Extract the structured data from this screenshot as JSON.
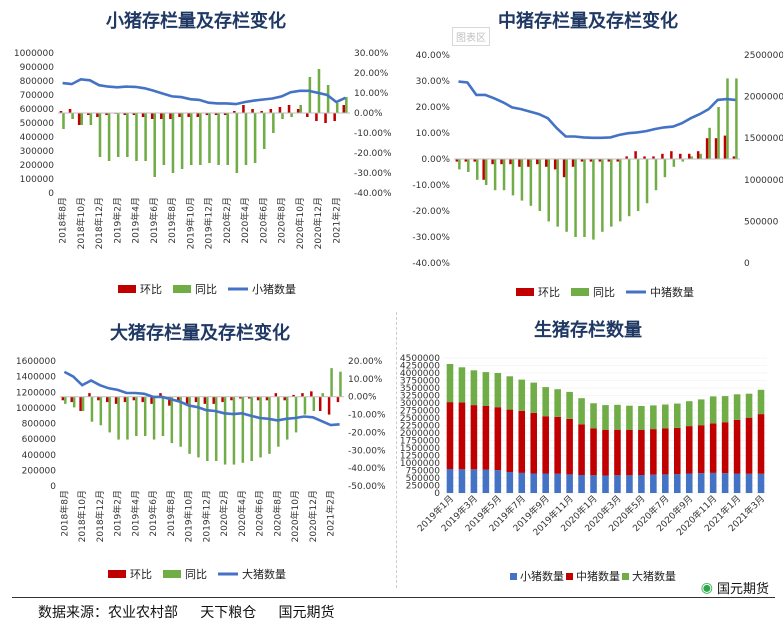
{
  "colors": {
    "mom": "#c00000",
    "yoy": "#70ad47",
    "line": "#4472c4",
    "stack_small": "#4472c4",
    "stack_mid": "#c00000",
    "stack_big": "#70ad47"
  },
  "legend_labels": {
    "mom": "环比",
    "yoy": "同比"
  },
  "footer": {
    "source": "数据来源：农业农村部     天下粮仓     国元期货",
    "brand": "国元期货",
    "brand_icon": "wechat-icon"
  },
  "watermark": "图表区",
  "chart_data": [
    {
      "type": "bar",
      "title": "小猪存栏量及存栏变化",
      "categories": [
        "2018年8月",
        "2018年9月",
        "2018年10月",
        "2018年11月",
        "2018年12月",
        "2019年1月",
        "2019年2月",
        "2019年3月",
        "2019年4月",
        "2019年5月",
        "2019年6月",
        "2019年7月",
        "2019年8月",
        "2019年9月",
        "2019年10月",
        "2019年11月",
        "2019年12月",
        "2020年1月",
        "2020年2月",
        "2020年3月",
        "2020年4月",
        "2020年5月",
        "2020年6月",
        "2020年7月",
        "2020年8月",
        "2020年9月",
        "2020年10月",
        "2020年11月",
        "2020年12月",
        "2021年1月",
        "2021年2月",
        "2021年3月"
      ],
      "xtick_labels": [
        "2018年8月",
        "2018年10月",
        "2018年12月",
        "2019年2月",
        "2019年4月",
        "2019年6月",
        "2019年8月",
        "2019年10月",
        "2019年12月",
        "2020年2月",
        "2020年4月",
        "2020年6月",
        "2020年8月",
        "2020年10月",
        "2020年12月",
        "2021年2月"
      ],
      "left_axis": {
        "ylim": [
          0,
          1000000
        ],
        "ticks": [
          "0",
          "100000",
          "200000",
          "300000",
          "400000",
          "500000",
          "600000",
          "700000",
          "800000",
          "900000",
          "1000000"
        ]
      },
      "right_axis": {
        "ylim": [
          -40,
          30
        ],
        "ticks": [
          "-40.00%",
          "-30.00%",
          "-20.00%",
          "-10.00%",
          "0.00%",
          "10.00%",
          "20.00%",
          "30.00%"
        ]
      },
      "series": [
        {
          "name": "环比",
          "kind": "bar",
          "axis": "right",
          "values": [
            1,
            2,
            -6,
            -1,
            -2,
            -1,
            0,
            -1,
            -1,
            -2,
            -3,
            -3,
            -3,
            -2,
            -2,
            -2,
            -1,
            -1,
            -1,
            1,
            4,
            2,
            1,
            2,
            3,
            4,
            2,
            -2,
            -4,
            -5,
            -4,
            4
          ]
        },
        {
          "name": "同比",
          "kind": "bar",
          "axis": "right",
          "values": [
            -8,
            -3,
            -6,
            -6,
            -22,
            -24,
            -22,
            -22,
            -24,
            -24,
            -32,
            -26,
            -30,
            -28,
            -26,
            -26,
            -25,
            -26,
            -26,
            -30,
            -26,
            -25,
            -18,
            -10,
            -3,
            -2,
            4,
            18,
            22,
            14,
            5,
            8
          ]
        },
        {
          "name": "小猪数量",
          "kind": "line",
          "axis": "left",
          "values": [
            785000,
            778000,
            812000,
            805000,
            770000,
            760000,
            755000,
            760000,
            758000,
            748000,
            730000,
            710000,
            690000,
            685000,
            670000,
            665000,
            645000,
            640000,
            640000,
            635000,
            650000,
            660000,
            668000,
            675000,
            690000,
            720000,
            730000,
            730000,
            715000,
            700000,
            650000,
            680000
          ]
        }
      ]
    },
    {
      "type": "bar",
      "title": "中猪存栏量及存栏变化",
      "categories": [
        "2018年8月",
        "2018年9月",
        "2018年10月",
        "2018年11月",
        "2018年12月",
        "2019年1月",
        "2019年2月",
        "2019年3月",
        "2019年4月",
        "2019年5月",
        "2019年6月",
        "2019年7月",
        "2019年8月",
        "2019年9月",
        "2019年10月",
        "2019年11月",
        "2019年12月",
        "2020年1月",
        "2020年2月",
        "2020年3月",
        "2020年4月",
        "2020年5月",
        "2020年6月",
        "2020年7月",
        "2020年8月",
        "2020年9月",
        "2020年10月",
        "2020年11月",
        "2020年12月",
        "2021年1月",
        "2021年2月",
        "2021年3月"
      ],
      "left_axis": {
        "ylim": [
          -40,
          40
        ],
        "ticks": [
          "-40.00%",
          "-30.00%",
          "-20.00%",
          "-10.00%",
          "0.00%",
          "10.00%",
          "20.00%",
          "30.00%",
          "40.00%"
        ]
      },
      "right_axis": {
        "ylim": [
          0,
          2500000
        ],
        "ticks": [
          "0",
          "500000",
          "1000000",
          "1500000",
          "2000000",
          "2500000"
        ]
      },
      "series": [
        {
          "name": "环比",
          "kind": "bar",
          "axis": "left",
          "values": [
            -1,
            -1,
            -1,
            -8,
            -2,
            -2,
            -2,
            -3,
            -3,
            -2,
            -3,
            -4,
            -7,
            -3,
            -1,
            -1,
            -1,
            -1,
            -1,
            1,
            3,
            1,
            1,
            2,
            3,
            2,
            2,
            3,
            8,
            8,
            9,
            1
          ]
        },
        {
          "name": "同比",
          "kind": "bar",
          "axis": "left",
          "values": [
            -4,
            -5,
            -8,
            -10,
            -12,
            -12,
            -14,
            -16,
            -18,
            -20,
            -24,
            -26,
            -28,
            -30,
            -30,
            -31,
            -28,
            -26,
            -24,
            -22,
            -20,
            -17,
            -12,
            -7,
            -3,
            -1,
            1,
            2,
            12,
            20,
            31,
            31
          ]
        },
        {
          "name": "中猪数量",
          "kind": "line",
          "axis": "right",
          "values": [
            2180000,
            2170000,
            2020000,
            2020000,
            1980000,
            1930000,
            1870000,
            1850000,
            1820000,
            1790000,
            1740000,
            1620000,
            1520000,
            1520000,
            1510000,
            1505000,
            1505000,
            1510000,
            1540000,
            1560000,
            1570000,
            1585000,
            1610000,
            1630000,
            1640000,
            1680000,
            1740000,
            1790000,
            1850000,
            1960000,
            1970000,
            1960000
          ]
        }
      ]
    },
    {
      "type": "bar",
      "title": "大猪存栏量及存栏变化",
      "categories": [
        "2018年8月",
        "2018年9月",
        "2018年10月",
        "2018年11月",
        "2018年12月",
        "2019年1月",
        "2019年2月",
        "2019年3月",
        "2019年4月",
        "2019年5月",
        "2019年6月",
        "2019年7月",
        "2019年8月",
        "2019年9月",
        "2019年10月",
        "2019年11月",
        "2019年12月",
        "2020年1月",
        "2020年2月",
        "2020年3月",
        "2020年4月",
        "2020年5月",
        "2020年6月",
        "2020年7月",
        "2020年8月",
        "2020年9月",
        "2020年10月",
        "2020年11月",
        "2020年12月",
        "2021年1月",
        "2021年2月",
        "2021年3月"
      ],
      "xtick_labels": [
        "2018年8月",
        "2018年10月",
        "2018年12月",
        "2019年2月",
        "2019年4月",
        "2019年6月",
        "2019年8月",
        "2019年10月",
        "2019年12月",
        "2020年2月",
        "2020年4月",
        "2020年6月",
        "2020年8月",
        "2020年10月",
        "2020年12月",
        "2021年2月"
      ],
      "left_axis": {
        "ylim": [
          0,
          1600000
        ],
        "ticks": [
          "0",
          "200000",
          "400000",
          "600000",
          "800000",
          "1000000",
          "1200000",
          "1400000",
          "1600000"
        ]
      },
      "right_axis": {
        "ylim": [
          -50,
          20
        ],
        "ticks": [
          "-50.00%",
          "-40.00%",
          "-30.00%",
          "-20.00%",
          "-10.00%",
          "0.00%",
          "10.00%",
          "20.00%"
        ]
      },
      "series": [
        {
          "name": "环比",
          "kind": "bar",
          "axis": "right",
          "values": [
            -2,
            -3,
            -8,
            2,
            -2,
            -3,
            -4,
            -3,
            -2,
            -3,
            -4,
            2,
            -5,
            -3,
            -4,
            -3,
            -4,
            -4,
            -3,
            -2,
            -1,
            -1,
            -2,
            -2,
            2,
            -2,
            1,
            2,
            3,
            -8,
            -10,
            -3
          ]
        },
        {
          "name": "同比",
          "kind": "bar",
          "axis": "right",
          "values": [
            -4,
            -6,
            -8,
            -14,
            -16,
            -20,
            -24,
            -24,
            -22,
            -22,
            -24,
            -22,
            -26,
            -28,
            -32,
            -34,
            -36,
            -36,
            -38,
            -38,
            -37,
            -36,
            -34,
            -32,
            -28,
            -24,
            -20,
            -10,
            -8,
            2,
            16,
            14
          ]
        },
        {
          "name": "大猪数量",
          "kind": "line",
          "axis": "left",
          "values": [
            1460000,
            1400000,
            1290000,
            1350000,
            1290000,
            1250000,
            1230000,
            1190000,
            1190000,
            1180000,
            1140000,
            1140000,
            1110000,
            1080000,
            1030000,
            1010000,
            970000,
            960000,
            930000,
            920000,
            930000,
            900000,
            870000,
            860000,
            840000,
            860000,
            870000,
            890000,
            880000,
            830000,
            780000,
            790000
          ]
        }
      ]
    },
    {
      "type": "bar",
      "stacked": true,
      "title": "生猪存栏数量",
      "categories": [
        "2019年1月",
        "2019年2月",
        "2019年3月",
        "2019年4月",
        "2019年5月",
        "2019年6月",
        "2019年7月",
        "2019年8月",
        "2019年9月",
        "2019年10月",
        "2019年11月",
        "2019年12月",
        "2020年1月",
        "2020年2月",
        "2020年3月",
        "2020年4月",
        "2020年5月",
        "2020年6月",
        "2020年7月",
        "2020年8月",
        "2020年9月",
        "2020年10月",
        "2020年11月",
        "2020年12月",
        "2021年1月",
        "2021年2月",
        "2021年3月"
      ],
      "xtick_labels": [
        "2019年1月",
        "2019年3月",
        "2019年5月",
        "2019年7月",
        "2019年9月",
        "2019年11月",
        "2020年1月",
        "2020年3月",
        "2020年5月",
        "2020年7月",
        "2020年9月",
        "2020年11月",
        "2021年1月",
        "2021年3月"
      ],
      "left_axis": {
        "ylim": [
          0,
          4500000
        ],
        "ticks": [
          "0",
          "250000",
          "500000",
          "750000",
          "1000000",
          "1250000",
          "1500000",
          "1750000",
          "2000000",
          "2250000",
          "2500000",
          "2750000",
          "3000000",
          "3250000",
          "3500000",
          "3750000",
          "4000000",
          "4250000",
          "4500000"
        ]
      },
      "series": [
        {
          "name": "小猪数量",
          "values": [
            800000,
            790000,
            790000,
            780000,
            760000,
            700000,
            670000,
            650000,
            650000,
            640000,
            620000,
            600000,
            590000,
            580000,
            590000,
            590000,
            600000,
            610000,
            620000,
            630000,
            650000,
            660000,
            670000,
            660000,
            650000,
            640000,
            640000
          ]
        },
        {
          "name": "中猪数量",
          "values": [
            2230000,
            2230000,
            2140000,
            2120000,
            2100000,
            2080000,
            2070000,
            2020000,
            1910000,
            1900000,
            1850000,
            1690000,
            1560000,
            1520000,
            1520000,
            1510000,
            1500000,
            1520000,
            1530000,
            1540000,
            1580000,
            1600000,
            1650000,
            1700000,
            1790000,
            1870000,
            1990000
          ]
        },
        {
          "name": "大猪数量",
          "values": [
            1270000,
            1170000,
            1160000,
            1130000,
            1140000,
            1110000,
            1040000,
            1010000,
            970000,
            920000,
            900000,
            870000,
            840000,
            830000,
            830000,
            810000,
            800000,
            790000,
            800000,
            810000,
            830000,
            860000,
            900000,
            870000,
            850000,
            800000,
            810000
          ]
        }
      ]
    }
  ]
}
